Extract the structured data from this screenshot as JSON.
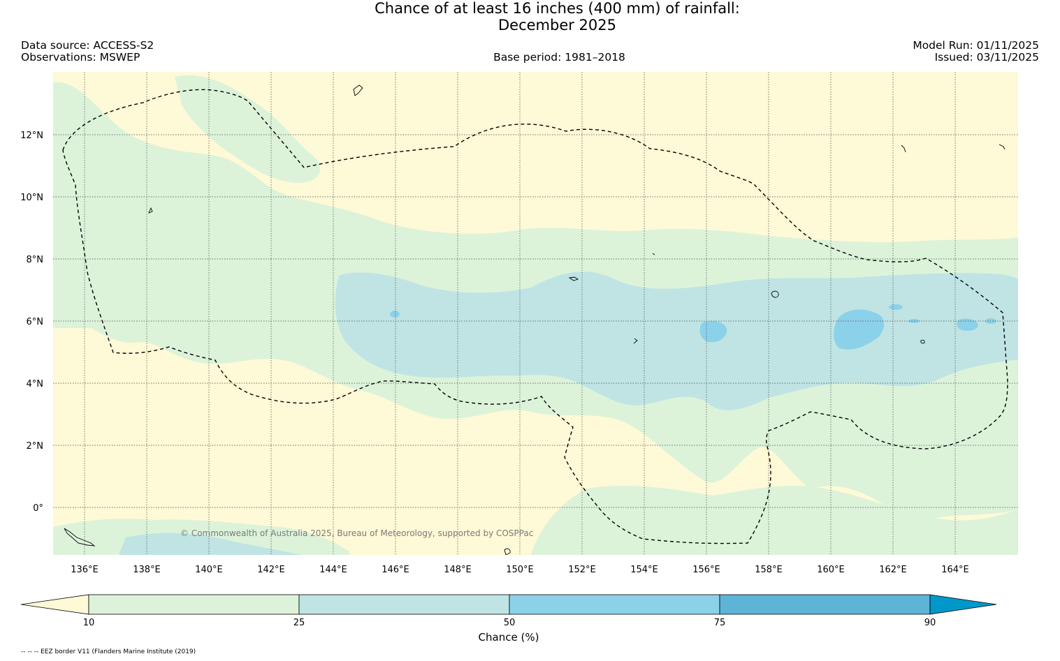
{
  "title": {
    "line1": "Chance of at least 16 inches (400  mm) of rainfall:",
    "line2": "December 2025"
  },
  "header": {
    "data_source": "Data source: ACCESS-S2",
    "observations": "Observations: MSWEP",
    "base_period": "Base period: 1981–2018",
    "model_run": "Model Run: 01/11/2025",
    "issued": "Issued: 03/11/2025"
  },
  "map": {
    "lat_labels": [
      "12°N",
      "10°N",
      "8°N",
      "6°N",
      "4°N",
      "2°N",
      "0°"
    ],
    "lon_labels": [
      "136°E",
      "138°E",
      "140°E",
      "142°E",
      "144°E",
      "146°E",
      "148°E",
      "150°E",
      "152°E",
      "154°E",
      "156°E",
      "158°E",
      "160°E",
      "162°E",
      "164°E"
    ],
    "copyright": "© Commonwealth of Australia 2025, Bureau of Meteorology, supported by COSPPac"
  },
  "colorbar": {
    "label": "Chance (%)",
    "ticks": [
      "10",
      "25",
      "50",
      "75",
      "90"
    ],
    "colors": {
      "below_10": "#fef9d6",
      "c10_25": "#dcf3da",
      "c25_50": "#c0e4e4",
      "c50_75": "#8cd1ea",
      "c75_90": "#5db4d7",
      "above_90": "#0197c9"
    }
  },
  "footnote": "-- -- -- EEZ border V11 (Flanders Marine Institute (2019)"
}
